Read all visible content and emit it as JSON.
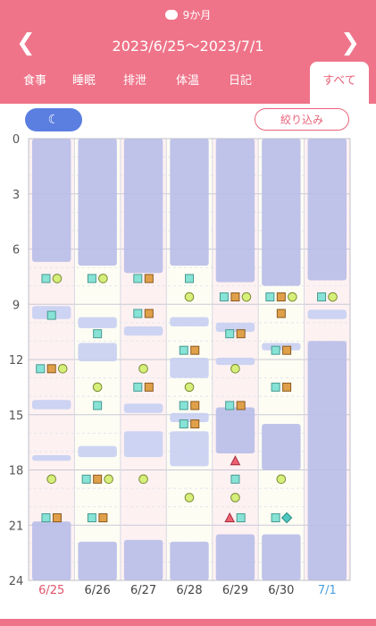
{
  "header": {
    "age": "9か月",
    "range": "2023/6/25〜2023/7/1",
    "prev_icon": "chevron-left-icon",
    "next_icon": "chevron-right-icon"
  },
  "tabs": [
    "食事",
    "睡眠",
    "排泄",
    "体温",
    "日記",
    "すべて"
  ],
  "active_tab": "すべて",
  "filter_label": "絞り込み",
  "moon_icon": "moon-icon",
  "hour_labels": [
    "0",
    "3",
    "6",
    "9",
    "12",
    "15",
    "18",
    "21",
    "24"
  ],
  "days": [
    {
      "label": "6/25",
      "color": "#e0536b"
    },
    {
      "label": "6/26",
      "color": "#444444"
    },
    {
      "label": "6/27",
      "color": "#444444"
    },
    {
      "label": "6/28",
      "color": "#444444"
    },
    {
      "label": "6/29",
      "color": "#444444"
    },
    {
      "label": "6/30",
      "color": "#444444"
    },
    {
      "label": "7/1",
      "color": "#4a9fe0"
    }
  ],
  "colors": {
    "accent": "#ef7489",
    "sleep": "#c8cff2",
    "sleep_dark": "#b8bde8",
    "teal": "#86e3d6",
    "orange": "#e0a04a",
    "lime": "#d6ef7a",
    "red": "#f06070"
  },
  "sleep_blocks": [
    {
      "day": 0,
      "from": 0,
      "to": 6.7
    },
    {
      "day": 0,
      "from": 9.1,
      "to": 9.8
    },
    {
      "day": 0,
      "from": 14.2,
      "to": 14.7
    },
    {
      "day": 0,
      "from": 17.2,
      "to": 17.5
    },
    {
      "day": 0,
      "from": 20.8,
      "to": 24
    },
    {
      "day": 1,
      "from": 0,
      "to": 6.9
    },
    {
      "day": 1,
      "from": 9.7,
      "to": 10.3
    },
    {
      "day": 1,
      "from": 11.1,
      "to": 12.1
    },
    {
      "day": 1,
      "from": 16.7,
      "to": 17.3
    },
    {
      "day": 1,
      "from": 21.9,
      "to": 24
    },
    {
      "day": 2,
      "from": 0,
      "to": 7.3
    },
    {
      "day": 2,
      "from": 10.2,
      "to": 10.7
    },
    {
      "day": 2,
      "from": 14.4,
      "to": 14.9
    },
    {
      "day": 2,
      "from": 15.9,
      "to": 17.3
    },
    {
      "day": 2,
      "from": 21.8,
      "to": 24
    },
    {
      "day": 3,
      "from": 0,
      "to": 6.9
    },
    {
      "day": 3,
      "from": 9.7,
      "to": 10.2
    },
    {
      "day": 3,
      "from": 11.9,
      "to": 13.0
    },
    {
      "day": 3,
      "from": 14.9,
      "to": 15.4
    },
    {
      "day": 3,
      "from": 15.9,
      "to": 17.8
    },
    {
      "day": 3,
      "from": 21.9,
      "to": 24
    },
    {
      "day": 4,
      "from": 0,
      "to": 7.8
    },
    {
      "day": 4,
      "from": 10.0,
      "to": 10.5
    },
    {
      "day": 4,
      "from": 11.9,
      "to": 12.3
    },
    {
      "day": 4,
      "from": 14.6,
      "to": 17.1
    },
    {
      "day": 4,
      "from": 21.5,
      "to": 24
    },
    {
      "day": 5,
      "from": 0,
      "to": 8.0
    },
    {
      "day": 5,
      "from": 11.1,
      "to": 11.5
    },
    {
      "day": 5,
      "from": 15.5,
      "to": 18.0
    },
    {
      "day": 5,
      "from": 21.5,
      "to": 24
    },
    {
      "day": 6,
      "from": 0,
      "to": 7.7
    },
    {
      "day": 6,
      "from": 9.3,
      "to": 9.8
    },
    {
      "day": 6,
      "from": 11.0,
      "to": 24
    }
  ],
  "events": [
    {
      "day": 0,
      "h": 7.6,
      "kinds": [
        "teal",
        "lime"
      ]
    },
    {
      "day": 0,
      "h": 9.6,
      "kinds": [
        "teal"
      ]
    },
    {
      "day": 0,
      "h": 12.5,
      "kinds": [
        "teal",
        "orange",
        "lime"
      ]
    },
    {
      "day": 0,
      "h": 18.5,
      "kinds": [
        "lime"
      ]
    },
    {
      "day": 0,
      "h": 20.6,
      "kinds": [
        "teal",
        "orange"
      ]
    },
    {
      "day": 1,
      "h": 7.6,
      "kinds": [
        "teal",
        "lime"
      ]
    },
    {
      "day": 1,
      "h": 10.6,
      "kinds": [
        "teal"
      ]
    },
    {
      "day": 1,
      "h": 13.5,
      "kinds": [
        "lime"
      ]
    },
    {
      "day": 1,
      "h": 14.5,
      "kinds": [
        "teal"
      ]
    },
    {
      "day": 1,
      "h": 18.5,
      "kinds": [
        "teal",
        "orange",
        "lime"
      ]
    },
    {
      "day": 1,
      "h": 20.6,
      "kinds": [
        "teal",
        "orange"
      ]
    },
    {
      "day": 2,
      "h": 7.6,
      "kinds": [
        "teal",
        "orange"
      ]
    },
    {
      "day": 2,
      "h": 9.5,
      "kinds": [
        "teal",
        "orange"
      ]
    },
    {
      "day": 2,
      "h": 12.5,
      "kinds": [
        "lime"
      ]
    },
    {
      "day": 2,
      "h": 13.5,
      "kinds": [
        "teal",
        "orange"
      ]
    },
    {
      "day": 2,
      "h": 18.5,
      "kinds": [
        "lime"
      ]
    },
    {
      "day": 3,
      "h": 7.6,
      "kinds": [
        "teal"
      ]
    },
    {
      "day": 3,
      "h": 8.6,
      "kinds": [
        "lime"
      ]
    },
    {
      "day": 3,
      "h": 11.5,
      "kinds": [
        "teal",
        "orange"
      ]
    },
    {
      "day": 3,
      "h": 13.5,
      "kinds": [
        "lime"
      ]
    },
    {
      "day": 3,
      "h": 14.5,
      "kinds": [
        "teal",
        "orange"
      ]
    },
    {
      "day": 3,
      "h": 15.5,
      "kinds": [
        "teal",
        "orange"
      ]
    },
    {
      "day": 3,
      "h": 19.5,
      "kinds": [
        "lime"
      ]
    },
    {
      "day": 4,
      "h": 8.6,
      "kinds": [
        "teal",
        "orange",
        "lime"
      ]
    },
    {
      "day": 4,
      "h": 10.6,
      "kinds": [
        "teal",
        "orange"
      ]
    },
    {
      "day": 4,
      "h": 12.5,
      "kinds": [
        "lime"
      ]
    },
    {
      "day": 4,
      "h": 14.5,
      "kinds": [
        "teal",
        "orange"
      ]
    },
    {
      "day": 4,
      "h": 17.5,
      "kinds": [
        "tri"
      ]
    },
    {
      "day": 4,
      "h": 18.5,
      "kinds": [
        "teal"
      ]
    },
    {
      "day": 4,
      "h": 19.5,
      "kinds": [
        "lime"
      ]
    },
    {
      "day": 4,
      "h": 20.6,
      "kinds": [
        "tri",
        "teal"
      ]
    },
    {
      "day": 5,
      "h": 8.6,
      "kinds": [
        "teal",
        "orange",
        "lime"
      ]
    },
    {
      "day": 5,
      "h": 9.5,
      "kinds": [
        "orange"
      ]
    },
    {
      "day": 5,
      "h": 11.5,
      "kinds": [
        "teal",
        "orange"
      ]
    },
    {
      "day": 5,
      "h": 13.5,
      "kinds": [
        "teal",
        "orange"
      ]
    },
    {
      "day": 5,
      "h": 18.5,
      "kinds": [
        "lime"
      ]
    },
    {
      "day": 5,
      "h": 20.6,
      "kinds": [
        "teal",
        "diamond"
      ]
    },
    {
      "day": 6,
      "h": 8.6,
      "kinds": [
        "teal",
        "lime"
      ]
    }
  ]
}
